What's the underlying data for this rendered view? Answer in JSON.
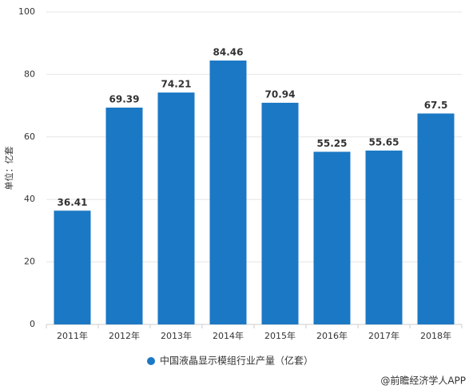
{
  "chart_data": {
    "type": "bar",
    "y_label": "单位：亿套",
    "categories": [
      "2011年",
      "2012年",
      "2013年",
      "2014年",
      "2015年",
      "2016年",
      "2017年",
      "2018年"
    ],
    "series": [
      {
        "name": "中国液晶显示模组行业产量（亿套）",
        "color": "#1b78c4",
        "values": [
          36.41,
          69.39,
          74.21,
          84.46,
          70.94,
          55.25,
          55.65,
          67.5
        ]
      }
    ],
    "ylim": [
      0,
      100
    ],
    "yticks": [
      0,
      20,
      40,
      60,
      80,
      100
    ],
    "grid": true,
    "source": "@前瞻经济学人APP"
  }
}
